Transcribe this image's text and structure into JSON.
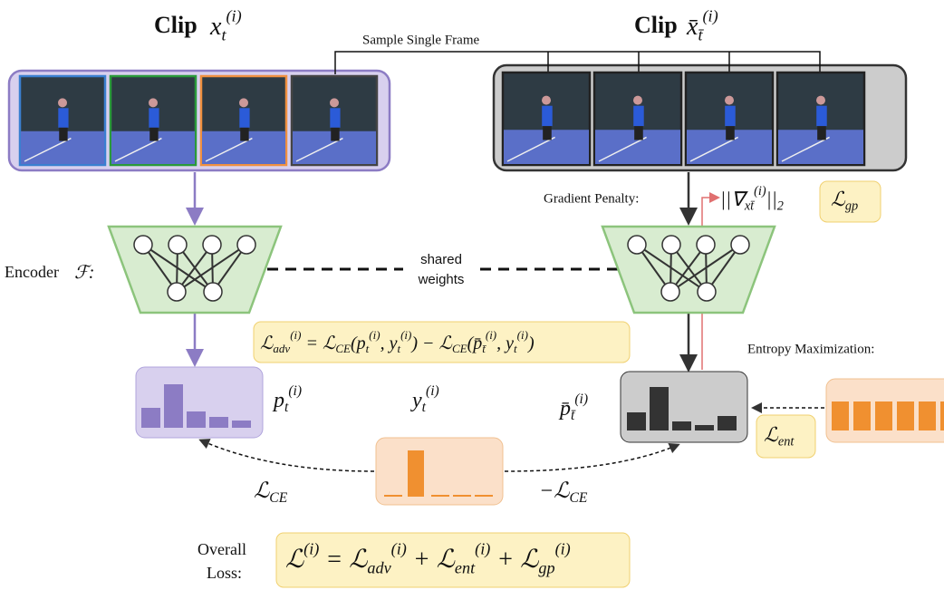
{
  "clip_left": {
    "label": "Clip",
    "math": [
      {
        "t": "x"
      },
      {
        "sub": "t"
      },
      {
        "sup": "(i)"
      }
    ]
  },
  "clip_right": {
    "label": "Clip",
    "math": [
      {
        "t": "x̄"
      },
      {
        "sub": "t̄"
      },
      {
        "sup": "(i)"
      }
    ]
  },
  "sample_label": "Sample Single Frame",
  "encoder_label": {
    "text": "Encoder",
    "math": [
      {
        "t": "ℱ:"
      }
    ]
  },
  "shared_weights": [
    "shared",
    "weights"
  ],
  "gradient_penalty": {
    "label": "Gradient Penalty:",
    "norm": [
      {
        "t": "||∇"
      },
      {
        "sub": "x"
      },
      {
        "sub": "t̄"
      },
      {
        "sup": "(i)"
      },
      {
        "t": "||"
      },
      {
        "sub": "2"
      }
    ],
    "loss": [
      {
        "t": "ℒ"
      },
      {
        "sub": "gp"
      }
    ]
  },
  "adv_formula": [
    {
      "t": "ℒ"
    },
    {
      "sub": "adv"
    },
    {
      "sup": "(i)"
    },
    {
      "t": " = ℒ"
    },
    {
      "sub": "CE"
    },
    {
      "t": "(p"
    },
    {
      "sub": "t"
    },
    {
      "sup": "(i)"
    },
    {
      "t": ", y"
    },
    {
      "sub": "t"
    },
    {
      "sup": "(i)"
    },
    {
      "t": ") − ℒ"
    },
    {
      "sub": "CE"
    },
    {
      "t": "(p̄"
    },
    {
      "sub": "t̄"
    },
    {
      "sup": "(i)"
    },
    {
      "t": ", y"
    },
    {
      "sub": "t"
    },
    {
      "sup": "(i)"
    },
    {
      "t": ")"
    }
  ],
  "p_label": [
    {
      "t": "p"
    },
    {
      "sub": "t"
    },
    {
      "sup": "(i)"
    }
  ],
  "y_label": [
    {
      "t": "y"
    },
    {
      "sub": "t"
    },
    {
      "sup": "(i)"
    }
  ],
  "pbar_label": [
    {
      "t": "p̄"
    },
    {
      "sub": "t̄"
    },
    {
      "sup": "(i)"
    }
  ],
  "entropy": {
    "label": "Entropy Maximization:",
    "loss": [
      {
        "t": "ℒ"
      },
      {
        "sub": "ent"
      }
    ]
  },
  "ce_left": [
    {
      "t": "ℒ"
    },
    {
      "sub": "CE"
    }
  ],
  "ce_right": [
    {
      "t": "−ℒ"
    },
    {
      "sub": "CE"
    }
  ],
  "overall": {
    "label": [
      "Overall",
      "Loss:"
    ],
    "formula": [
      {
        "t": "ℒ"
      },
      {
        "sup": "(i)"
      },
      {
        "t": " = ℒ"
      },
      {
        "sub": "adv"
      },
      {
        "sup": "(i)"
      },
      {
        "t": " + ℒ"
      },
      {
        "sub": "ent"
      },
      {
        "sup": "(i)"
      },
      {
        "t": " + ℒ"
      },
      {
        "sub": "gp"
      },
      {
        "sup": "(i)"
      }
    ]
  }
}
